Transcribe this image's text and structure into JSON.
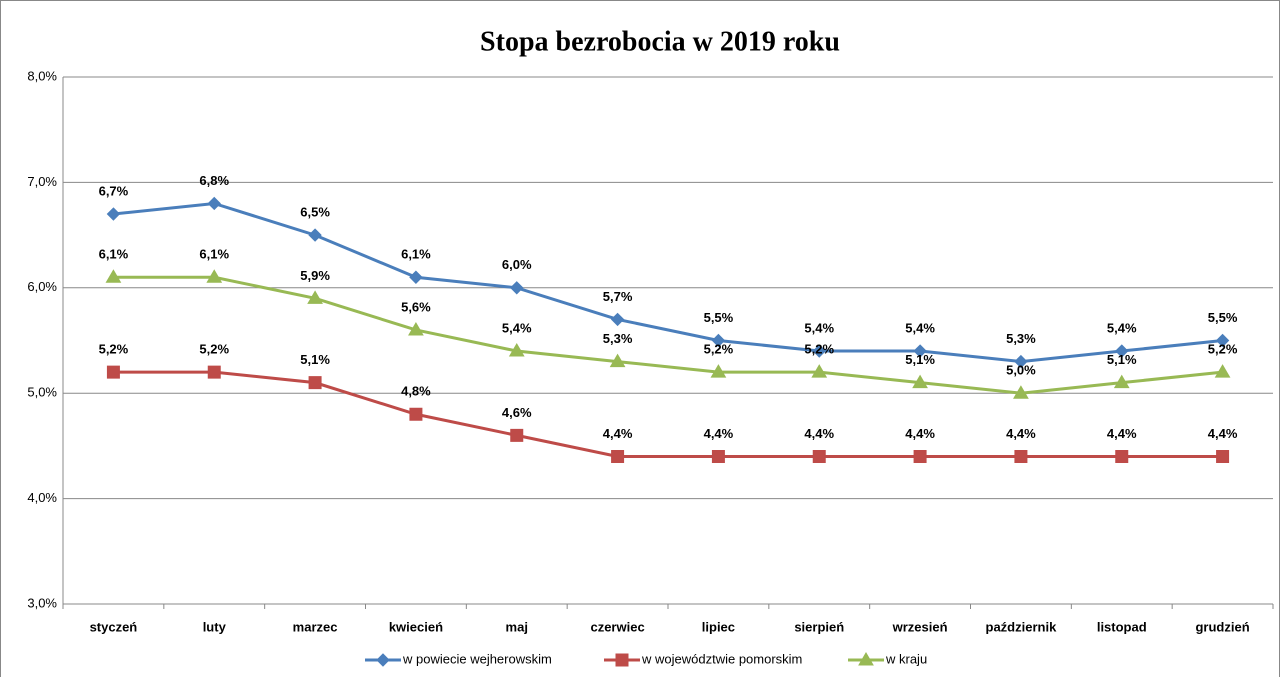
{
  "chart_data": {
    "type": "line",
    "title": "Stopa bezrobocia  w 2019 roku",
    "categories": [
      "styczeń",
      "luty",
      "marzec",
      "kwiecień",
      "maj",
      "czerwiec",
      "lipiec",
      "sierpień",
      "wrzesień",
      "październik",
      "listopad",
      "grudzień"
    ],
    "series": [
      {
        "name": "w powiecie wejherowskim",
        "color": "#4a7ebb",
        "marker": "diamond",
        "values": [
          6.7,
          6.8,
          6.5,
          6.1,
          6.0,
          5.7,
          5.5,
          5.4,
          5.4,
          5.3,
          5.4,
          5.5
        ],
        "value_labels": [
          "6,7%",
          "6,8%",
          "6,5%",
          "6,1%",
          "6,0%",
          "5,7%",
          "5,5%",
          "5,4%",
          "5,4%",
          "5,3%",
          "5,4%",
          "5,5%"
        ]
      },
      {
        "name": "w województwie pomorskim",
        "color": "#be4b48",
        "marker": "square",
        "values": [
          5.2,
          5.2,
          5.1,
          4.8,
          4.6,
          4.4,
          4.4,
          4.4,
          4.4,
          4.4,
          4.4,
          4.4
        ],
        "value_labels": [
          "5,2%",
          "5,2%",
          "5,1%",
          "4,8%",
          "4,6%",
          "4,4%",
          "4,4%",
          "4,4%",
          "4,4%",
          "4,4%",
          "4,4%",
          "4,4%"
        ]
      },
      {
        "name": "w kraju",
        "color": "#98b954",
        "marker": "triangle",
        "values": [
          6.1,
          6.1,
          5.9,
          5.6,
          5.4,
          5.3,
          5.2,
          5.2,
          5.1,
          5.0,
          5.1,
          5.2
        ],
        "value_labels": [
          "6,1%",
          "6,1%",
          "5,9%",
          "5,6%",
          "5,4%",
          "5,3%",
          "5,2%",
          "5,2%",
          "5,1%",
          "5,0%",
          "5,1%",
          "5,2%"
        ]
      }
    ],
    "ylim": [
      3.0,
      8.0
    ],
    "yticks": [
      {
        "value": 3.0,
        "label": "3,0%"
      },
      {
        "value": 4.0,
        "label": "4,0%"
      },
      {
        "value": 5.0,
        "label": "5,0%"
      },
      {
        "value": 6.0,
        "label": "6,0%"
      },
      {
        "value": 7.0,
        "label": "7,0%"
      },
      {
        "value": 8.0,
        "label": "8,0%"
      }
    ],
    "grid": true,
    "legend": "bottom"
  }
}
